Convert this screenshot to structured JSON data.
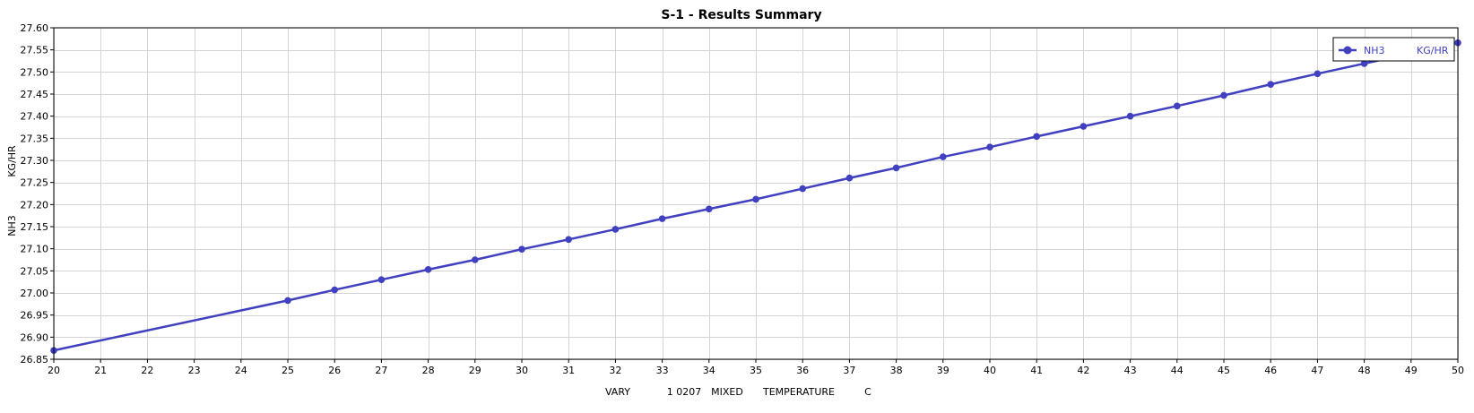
{
  "chart_data": {
    "type": "line",
    "title": "S-1 - Results Summary",
    "x_axis": {
      "label_parts": [
        "VARY",
        "1 0207",
        "MIXED",
        "TEMPERATURE",
        "C"
      ],
      "range": [
        20,
        50
      ],
      "ticks": [
        20,
        21,
        22,
        23,
        24,
        25,
        26,
        27,
        28,
        29,
        30,
        31,
        32,
        33,
        34,
        35,
        36,
        37,
        38,
        39,
        40,
        41,
        42,
        43,
        44,
        45,
        46,
        47,
        48,
        49,
        50
      ]
    },
    "y_axis": {
      "label_lines": [
        "NH3",
        "KG/HR"
      ],
      "range": [
        26.85,
        27.6
      ],
      "ticks": [
        "26.85",
        "26.90",
        "26.95",
        "27.00",
        "27.05",
        "27.10",
        "27.15",
        "27.20",
        "27.25",
        "27.30",
        "27.35",
        "27.40",
        "27.45",
        "27.50",
        "27.55",
        "27.60"
      ]
    },
    "grid": true,
    "legend": {
      "position": "top-right",
      "entries": [
        {
          "name": "NH3",
          "unit": "KG/HR"
        }
      ]
    },
    "series": [
      {
        "name": "NH3",
        "unit": "KG/HR",
        "color": "#4040c0",
        "x": [
          20,
          25,
          26,
          27,
          28,
          29,
          30,
          31,
          32,
          33,
          34,
          35,
          36,
          37,
          38,
          39,
          40,
          41,
          42,
          43,
          44,
          45,
          46,
          47,
          48,
          50
        ],
        "y": [
          26.87,
          26.983,
          27.007,
          27.03,
          27.053,
          27.075,
          27.099,
          27.121,
          27.144,
          27.168,
          27.19,
          27.212,
          27.236,
          27.26,
          27.283,
          27.308,
          27.33,
          27.354,
          27.377,
          27.4,
          27.423,
          27.447,
          27.472,
          27.496,
          27.519,
          27.566
        ]
      }
    ]
  }
}
